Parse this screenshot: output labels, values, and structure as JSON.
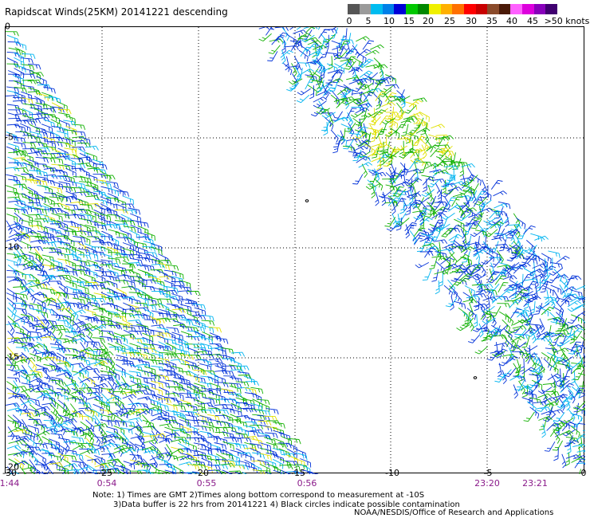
{
  "title": "Rapidscat Winds(25KM) 20141221 descending",
  "color_scale": {
    "swatches": [
      "#555555",
      "#9a9a9a",
      "#00bcf0",
      "#0080e8",
      "#0000d8",
      "#00c800",
      "#008800",
      "#f0f000",
      "#ffb000",
      "#ff7000",
      "#ff0000",
      "#c80000",
      "#8a4a2a",
      "#4a1a08",
      "#ff60ff",
      "#dd00dd",
      "#8800bb",
      "#400070"
    ],
    "labels": [
      "0",
      "5",
      "10",
      "15",
      "20",
      "25",
      "30",
      "35",
      "40",
      "45",
      ">50 knots"
    ]
  },
  "map": {
    "x_ticks": [
      "-30",
      "-25",
      "-20",
      "-15",
      "-10",
      "-5",
      "0"
    ],
    "y_ticks": [
      "0",
      "-5",
      "-10",
      "-15",
      "-20"
    ],
    "time_labels": [
      "1:44",
      "0:54",
      "0:55",
      "0:56",
      "23:20",
      "23:21"
    ],
    "x_range": [
      -30,
      0
    ],
    "y_range": [
      -20,
      0
    ],
    "barb_colors": {
      "low": "#0030d8",
      "mid": "#00b4f0",
      "green": "#10b000",
      "yellow": "#e0e000"
    }
  },
  "notes": {
    "line1": "Note: 1) Times are GMT 2)Times along bottom correspond to measurement at -10S",
    "line2": "3)Data buffer is 22 hrs from 20141221 4) Black circles indicate possible contamination"
  },
  "credit": "NOAA/NESDIS/Office of Research and Applications"
}
